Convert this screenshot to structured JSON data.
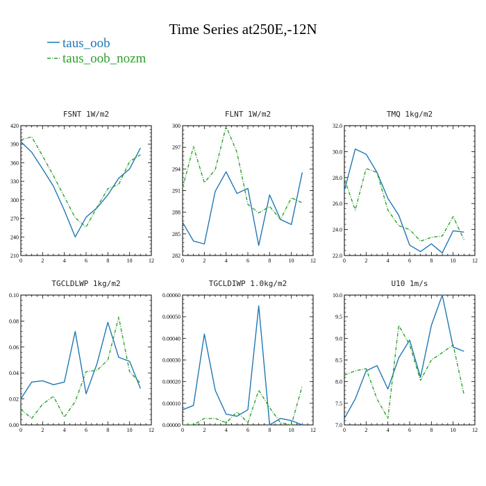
{
  "title": "Time Series at250E,-12N",
  "legend": [
    {
      "label": "taus_oob",
      "color": "#1f77b4",
      "dash": "solid"
    },
    {
      "label": "taus_oob_nozm",
      "color": "#2ca02c",
      "dash": "dashdot"
    }
  ],
  "chart_data": [
    {
      "type": "line",
      "title": "FSNT  1W/m2",
      "xlim": [
        0,
        12
      ],
      "xticks": [
        0,
        2,
        4,
        6,
        8,
        10,
        12
      ],
      "ylim": [
        210,
        420
      ],
      "yticks": [
        210,
        240,
        270,
        300,
        330,
        360,
        390,
        420
      ],
      "ydecimals": 0,
      "x": [
        0,
        1,
        2,
        3,
        4,
        5,
        6,
        7,
        8,
        9,
        10,
        11
      ],
      "series": [
        {
          "name": "taus_oob",
          "values": [
            394,
            377,
            350,
            322,
            283,
            240,
            272,
            287,
            308,
            335,
            350,
            384
          ]
        },
        {
          "name": "taus_oob_nozm",
          "values": [
            397,
            402,
            371,
            339,
            305,
            271,
            256,
            288,
            318,
            325,
            362,
            373
          ]
        }
      ]
    },
    {
      "type": "line",
      "title": "FLNT  1W/m2",
      "xlim": [
        0,
        12
      ],
      "xticks": [
        0,
        2,
        4,
        6,
        8,
        10,
        12
      ],
      "ylim": [
        282,
        300
      ],
      "yticks": [
        282,
        285,
        288,
        291,
        294,
        297,
        300
      ],
      "ydecimals": 0,
      "x": [
        0,
        1,
        2,
        3,
        4,
        5,
        6,
        7,
        8,
        9,
        10,
        11
      ],
      "series": [
        {
          "name": "taus_oob",
          "values": [
            286.6,
            284.0,
            283.6,
            290.9,
            293.6,
            290.6,
            291.3,
            283.4,
            290.4,
            287.0,
            286.3,
            293.5
          ]
        },
        {
          "name": "taus_oob_nozm",
          "values": [
            291.4,
            297.1,
            292.1,
            293.9,
            299.9,
            296.3,
            289.1,
            287.9,
            288.8,
            287.0,
            290.0,
            289.3
          ]
        }
      ]
    },
    {
      "type": "line",
      "title": "TMQ  1kg/m2",
      "xlim": [
        0,
        12
      ],
      "xticks": [
        0,
        2,
        4,
        6,
        8,
        10,
        12
      ],
      "ylim": [
        22.0,
        32.0
      ],
      "yticks": [
        22.0,
        24.0,
        26.0,
        28.0,
        30.0,
        32.0
      ],
      "ydecimals": 1,
      "x": [
        0,
        1,
        2,
        3,
        4,
        5,
        6,
        7,
        8,
        9,
        10,
        11
      ],
      "series": [
        {
          "name": "taus_oob",
          "values": [
            27.0,
            30.2,
            29.8,
            28.4,
            26.4,
            25.1,
            22.8,
            22.3,
            22.9,
            22.2,
            23.9,
            23.8
          ]
        },
        {
          "name": "taus_oob_nozm",
          "values": [
            27.9,
            25.5,
            28.7,
            28.4,
            25.5,
            24.3,
            24.0,
            23.1,
            23.4,
            23.5,
            25.0,
            23.2
          ]
        }
      ]
    },
    {
      "type": "line",
      "title": "TGCLDLWP  1kg/m2",
      "xlim": [
        0,
        12
      ],
      "xticks": [
        0,
        2,
        4,
        6,
        8,
        10,
        12
      ],
      "ylim": [
        0.0,
        0.1
      ],
      "yticks": [
        0.0,
        0.02,
        0.04,
        0.06,
        0.08,
        0.1
      ],
      "ydecimals": 2,
      "x": [
        0,
        1,
        2,
        3,
        4,
        5,
        6,
        7,
        8,
        9,
        10,
        11
      ],
      "series": [
        {
          "name": "taus_oob",
          "values": [
            0.02,
            0.033,
            0.034,
            0.031,
            0.033,
            0.072,
            0.024,
            0.047,
            0.079,
            0.052,
            0.049,
            0.028
          ]
        },
        {
          "name": "taus_oob_nozm",
          "values": [
            0.012,
            0.005,
            0.016,
            0.022,
            0.006,
            0.018,
            0.041,
            0.042,
            0.05,
            0.083,
            0.041,
            0.032
          ]
        }
      ]
    },
    {
      "type": "line",
      "title": "TGCLDIWP  1.0kg/m2",
      "xlim": [
        0,
        12
      ],
      "xticks": [
        0,
        2,
        4,
        6,
        8,
        10,
        12
      ],
      "ylim": [
        0.0,
        0.0006
      ],
      "yticks": [
        0.0,
        0.0001,
        0.0002,
        0.0003,
        0.0004,
        0.0005,
        0.0006
      ],
      "ydecimals": 5,
      "x": [
        0,
        1,
        2,
        3,
        4,
        5,
        6,
        7,
        8,
        9,
        10,
        11
      ],
      "series": [
        {
          "name": "taus_oob",
          "values": [
            7e-05,
            9e-05,
            0.00042,
            0.00016,
            5e-05,
            4e-05,
            7e-05,
            0.00055,
            0.0,
            3e-05,
            2e-05,
            0.0
          ]
        },
        {
          "name": "taus_oob_nozm",
          "values": [
            0.0,
            0.0,
            3e-05,
            3e-05,
            1e-05,
            6e-05,
            1e-05,
            0.00016,
            8e-05,
            1e-05,
            0.0,
            0.00018
          ]
        }
      ]
    },
    {
      "type": "line",
      "title": "U10  1m/s",
      "xlim": [
        0,
        12
      ],
      "xticks": [
        0,
        2,
        4,
        6,
        8,
        10,
        12
      ],
      "ylim": [
        7.0,
        10.0
      ],
      "yticks": [
        7.0,
        7.5,
        8.0,
        8.5,
        9.0,
        9.5,
        10.0
      ],
      "ydecimals": 1,
      "x": [
        0,
        1,
        2,
        3,
        4,
        5,
        6,
        7,
        8,
        9,
        10,
        11
      ],
      "series": [
        {
          "name": "taus_oob",
          "values": [
            7.15,
            7.6,
            8.25,
            8.37,
            7.83,
            8.55,
            8.96,
            8.1,
            9.3,
            10.0,
            8.8,
            8.7
          ]
        },
        {
          "name": "taus_oob_nozm",
          "values": [
            8.15,
            8.25,
            8.3,
            7.6,
            7.15,
            9.3,
            8.85,
            8.03,
            8.5,
            8.67,
            8.85,
            7.7
          ]
        }
      ]
    }
  ]
}
